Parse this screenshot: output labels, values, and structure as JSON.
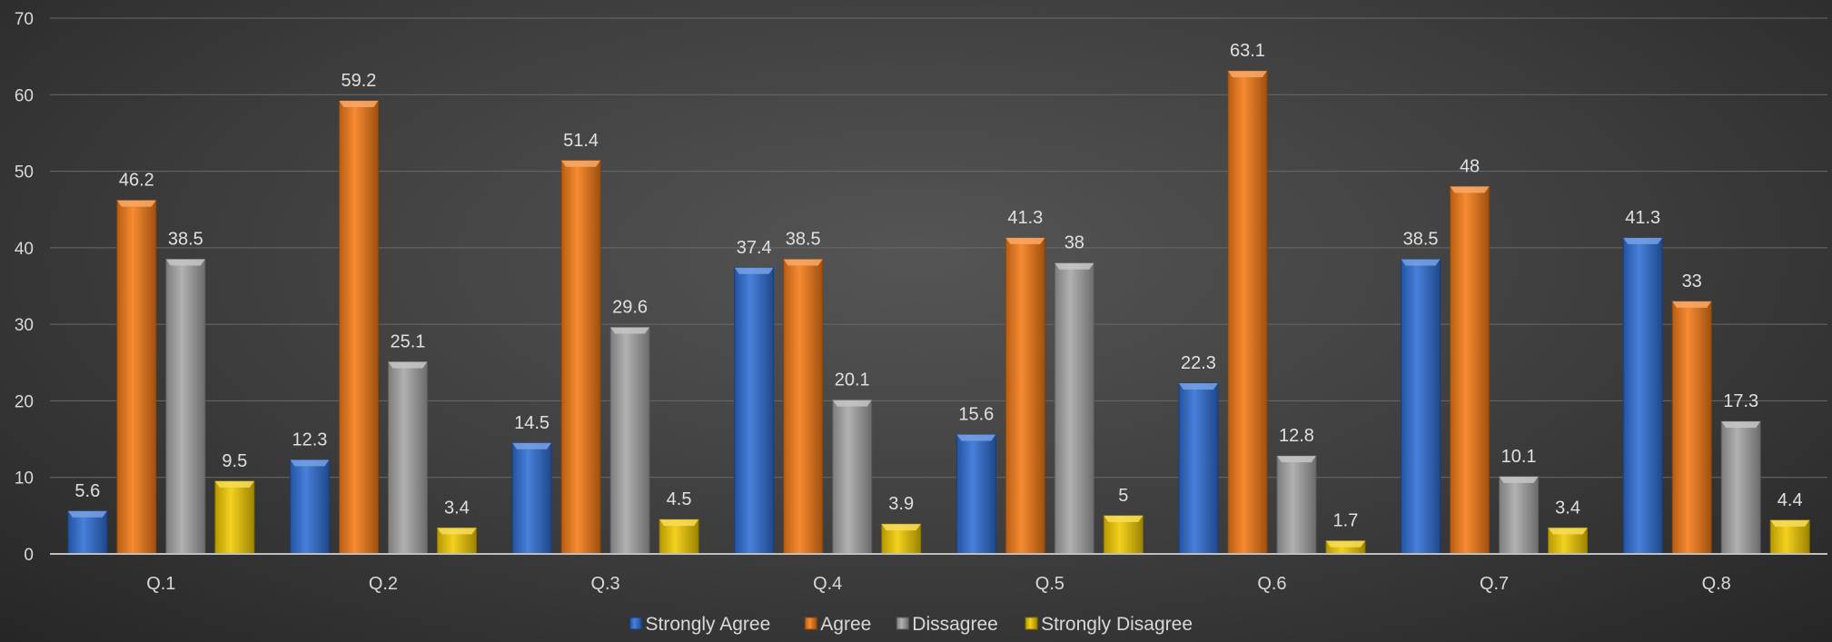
{
  "chart_data": {
    "type": "bar",
    "categories": [
      "Q.1",
      "Q.2",
      "Q.3",
      "Q.4",
      "Q.5",
      "Q.6",
      "Q.7",
      "Q.8"
    ],
    "series": [
      {
        "name": "Strongly Agree",
        "color": "#2f6fd6",
        "values": [
          5.6,
          12.3,
          14.5,
          37.4,
          15.6,
          22.3,
          38.5,
          41.3
        ]
      },
      {
        "name": "Agree",
        "color": "#f57b16",
        "values": [
          46.2,
          59.2,
          51.4,
          38.5,
          41.3,
          63.1,
          48,
          33
        ]
      },
      {
        "name": "Dissagree",
        "color": "#a6a6a6",
        "values": [
          38.5,
          25.1,
          29.6,
          20.1,
          38,
          12.8,
          10.1,
          17.3
        ]
      },
      {
        "name": "Strongly Disagree",
        "color": "#f2cb00",
        "values": [
          9.5,
          3.4,
          4.5,
          3.9,
          5,
          1.7,
          3.4,
          4.4
        ]
      }
    ],
    "ylim": [
      0,
      70
    ],
    "yticks": [
      0,
      10,
      20,
      30,
      40,
      50,
      60,
      70
    ],
    "grid": true,
    "legend": "bottom",
    "title": "",
    "xlabel": "",
    "ylabel": ""
  }
}
